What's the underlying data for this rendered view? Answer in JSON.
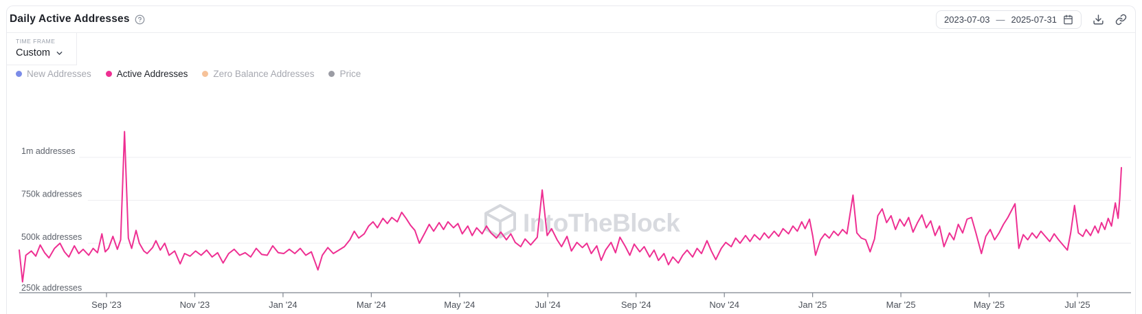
{
  "header": {
    "title": "Daily Active Addresses",
    "date_range": {
      "start": "2023-07-03",
      "separator": "—",
      "end": "2025-07-31"
    }
  },
  "timeframe": {
    "label": "TIME FRAME",
    "value": "Custom"
  },
  "legend": {
    "items": [
      {
        "label": "New Addresses",
        "color": "#7b8ce8",
        "active": false
      },
      {
        "label": "Active Addresses",
        "color": "#ee2f92",
        "active": true
      },
      {
        "label": "Zero Balance Addresses",
        "color": "#f6c299",
        "active": false
      },
      {
        "label": "Price",
        "color": "#9b9ca4",
        "active": false
      }
    ]
  },
  "watermark": {
    "text": "IntoTheBlock"
  },
  "chart_data": {
    "type": "line",
    "title": "Daily Active Addresses",
    "values_unit": "thousands of addresses",
    "x_range": [
      "2023-07-03",
      "2025-07-31"
    ],
    "x_ticks": [
      "Sep '23",
      "Nov '23",
      "Jan '24",
      "Mar '24",
      "May '24",
      "Jul '24",
      "Sep '24",
      "Nov '24",
      "Jan '25",
      "Mar '25",
      "May '25",
      "Jul '25"
    ],
    "y_ticks": [
      {
        "value": 250,
        "label": "250k addresses"
      },
      {
        "value": 500,
        "label": "500k addresses"
      },
      {
        "value": 750,
        "label": "750k addresses"
      },
      {
        "value": 1000,
        "label": "1m addresses"
      }
    ],
    "ylim": [
      210,
      1330
    ],
    "grid": "horizontal",
    "legend_position": "top-left",
    "series": [
      {
        "name": "Active Addresses",
        "color": "#ee2f92",
        "points": [
          [
            0.0,
            460
          ],
          [
            0.003,
            275
          ],
          [
            0.006,
            430
          ],
          [
            0.011,
            455
          ],
          [
            0.015,
            425
          ],
          [
            0.019,
            490
          ],
          [
            0.023,
            445
          ],
          [
            0.027,
            415
          ],
          [
            0.032,
            470
          ],
          [
            0.037,
            500
          ],
          [
            0.041,
            450
          ],
          [
            0.045,
            420
          ],
          [
            0.05,
            485
          ],
          [
            0.054,
            440
          ],
          [
            0.058,
            465
          ],
          [
            0.063,
            430
          ],
          [
            0.067,
            470
          ],
          [
            0.071,
            445
          ],
          [
            0.075,
            555
          ],
          [
            0.078,
            450
          ],
          [
            0.081,
            470
          ],
          [
            0.085,
            540
          ],
          [
            0.089,
            465
          ],
          [
            0.092,
            520
          ],
          [
            0.0955,
            1150
          ],
          [
            0.099,
            530
          ],
          [
            0.102,
            470
          ],
          [
            0.106,
            575
          ],
          [
            0.109,
            500
          ],
          [
            0.113,
            455
          ],
          [
            0.116,
            440
          ],
          [
            0.121,
            475
          ],
          [
            0.124,
            515
          ],
          [
            0.128,
            460
          ],
          [
            0.132,
            500
          ],
          [
            0.136,
            430
          ],
          [
            0.141,
            455
          ],
          [
            0.146,
            380
          ],
          [
            0.15,
            440
          ],
          [
            0.155,
            425
          ],
          [
            0.16,
            455
          ],
          [
            0.165,
            430
          ],
          [
            0.17,
            460
          ],
          [
            0.175,
            420
          ],
          [
            0.18,
            445
          ],
          [
            0.185,
            385
          ],
          [
            0.19,
            440
          ],
          [
            0.195,
            465
          ],
          [
            0.2,
            430
          ],
          [
            0.205,
            445
          ],
          [
            0.21,
            420
          ],
          [
            0.215,
            470
          ],
          [
            0.22,
            435
          ],
          [
            0.225,
            430
          ],
          [
            0.23,
            485
          ],
          [
            0.235,
            445
          ],
          [
            0.24,
            440
          ],
          [
            0.245,
            465
          ],
          [
            0.25,
            440
          ],
          [
            0.255,
            470
          ],
          [
            0.26,
            430
          ],
          [
            0.265,
            450
          ],
          [
            0.271,
            345
          ],
          [
            0.275,
            430
          ],
          [
            0.28,
            475
          ],
          [
            0.285,
            440
          ],
          [
            0.29,
            460
          ],
          [
            0.295,
            480
          ],
          [
            0.3,
            520
          ],
          [
            0.304,
            570
          ],
          [
            0.308,
            530
          ],
          [
            0.313,
            555
          ],
          [
            0.317,
            600
          ],
          [
            0.321,
            625
          ],
          [
            0.325,
            590
          ],
          [
            0.33,
            645
          ],
          [
            0.334,
            615
          ],
          [
            0.338,
            650
          ],
          [
            0.343,
            625
          ],
          [
            0.347,
            680
          ],
          [
            0.351,
            645
          ],
          [
            0.355,
            605
          ],
          [
            0.359,
            575
          ],
          [
            0.363,
            500
          ],
          [
            0.368,
            560
          ],
          [
            0.372,
            610
          ],
          [
            0.376,
            570
          ],
          [
            0.381,
            620
          ],
          [
            0.385,
            580
          ],
          [
            0.389,
            625
          ],
          [
            0.394,
            590
          ],
          [
            0.398,
            615
          ],
          [
            0.402,
            555
          ],
          [
            0.407,
            600
          ],
          [
            0.411,
            545
          ],
          [
            0.415,
            590
          ],
          [
            0.42,
            555
          ],
          [
            0.424,
            600
          ],
          [
            0.428,
            560
          ],
          [
            0.433,
            530
          ],
          [
            0.437,
            565
          ],
          [
            0.442,
            520
          ],
          [
            0.446,
            555
          ],
          [
            0.45,
            505
          ],
          [
            0.455,
            480
          ],
          [
            0.459,
            525
          ],
          [
            0.464,
            490
          ],
          [
            0.47,
            535
          ],
          [
            0.4745,
            810
          ],
          [
            0.479,
            545
          ],
          [
            0.483,
            585
          ],
          [
            0.488,
            520
          ],
          [
            0.492,
            480
          ],
          [
            0.497,
            540
          ],
          [
            0.501,
            455
          ],
          [
            0.506,
            505
          ],
          [
            0.511,
            475
          ],
          [
            0.515,
            500
          ],
          [
            0.519,
            440
          ],
          [
            0.524,
            485
          ],
          [
            0.528,
            400
          ],
          [
            0.532,
            460
          ],
          [
            0.537,
            505
          ],
          [
            0.541,
            445
          ],
          [
            0.545,
            535
          ],
          [
            0.55,
            480
          ],
          [
            0.554,
            430
          ],
          [
            0.558,
            495
          ],
          [
            0.563,
            450
          ],
          [
            0.567,
            480
          ],
          [
            0.572,
            420
          ],
          [
            0.576,
            460
          ],
          [
            0.58,
            400
          ],
          [
            0.585,
            440
          ],
          [
            0.589,
            375
          ],
          [
            0.593,
            420
          ],
          [
            0.598,
            385
          ],
          [
            0.602,
            430
          ],
          [
            0.606,
            460
          ],
          [
            0.611,
            420
          ],
          [
            0.615,
            470
          ],
          [
            0.619,
            440
          ],
          [
            0.624,
            515
          ],
          [
            0.628,
            455
          ],
          [
            0.632,
            405
          ],
          [
            0.637,
            470
          ],
          [
            0.641,
            505
          ],
          [
            0.646,
            480
          ],
          [
            0.65,
            530
          ],
          [
            0.654,
            500
          ],
          [
            0.659,
            545
          ],
          [
            0.663,
            510
          ],
          [
            0.667,
            550
          ],
          [
            0.672,
            520
          ],
          [
            0.676,
            560
          ],
          [
            0.68,
            530
          ],
          [
            0.685,
            570
          ],
          [
            0.689,
            540
          ],
          [
            0.693,
            585
          ],
          [
            0.698,
            555
          ],
          [
            0.702,
            600
          ],
          [
            0.706,
            570
          ],
          [
            0.71,
            625
          ],
          [
            0.713,
            585
          ],
          [
            0.717,
            640
          ],
          [
            0.72,
            540
          ],
          [
            0.7225,
            430
          ],
          [
            0.727,
            520
          ],
          [
            0.731,
            555
          ],
          [
            0.735,
            530
          ],
          [
            0.739,
            570
          ],
          [
            0.743,
            545
          ],
          [
            0.747,
            580
          ],
          [
            0.751,
            555
          ],
          [
            0.7565,
            780
          ],
          [
            0.76,
            560
          ],
          [
            0.764,
            530
          ],
          [
            0.768,
            520
          ],
          [
            0.772,
            450
          ],
          [
            0.776,
            525
          ],
          [
            0.779,
            660
          ],
          [
            0.783,
            700
          ],
          [
            0.787,
            620
          ],
          [
            0.791,
            660
          ],
          [
            0.795,
            580
          ],
          [
            0.799,
            640
          ],
          [
            0.803,
            600
          ],
          [
            0.807,
            650
          ],
          [
            0.811,
            565
          ],
          [
            0.815,
            620
          ],
          [
            0.819,
            665
          ],
          [
            0.823,
            590
          ],
          [
            0.827,
            630
          ],
          [
            0.831,
            545
          ],
          [
            0.835,
            600
          ],
          [
            0.839,
            480
          ],
          [
            0.844,
            560
          ],
          [
            0.848,
            520
          ],
          [
            0.852,
            610
          ],
          [
            0.856,
            560
          ],
          [
            0.86,
            640
          ],
          [
            0.864,
            650
          ],
          [
            0.868,
            560
          ],
          [
            0.873,
            440
          ],
          [
            0.877,
            540
          ],
          [
            0.881,
            580
          ],
          [
            0.885,
            520
          ],
          [
            0.889,
            560
          ],
          [
            0.893,
            610
          ],
          [
            0.897,
            650
          ],
          [
            0.9035,
            730
          ],
          [
            0.907,
            470
          ],
          [
            0.911,
            550
          ],
          [
            0.915,
            520
          ],
          [
            0.919,
            560
          ],
          [
            0.923,
            530
          ],
          [
            0.927,
            570
          ],
          [
            0.931,
            540
          ],
          [
            0.935,
            510
          ],
          [
            0.939,
            555
          ],
          [
            0.943,
            520
          ],
          [
            0.947,
            490
          ],
          [
            0.951,
            460
          ],
          [
            0.954,
            560
          ],
          [
            0.9575,
            720
          ],
          [
            0.961,
            560
          ],
          [
            0.965,
            540
          ],
          [
            0.968,
            580
          ],
          [
            0.972,
            545
          ],
          [
            0.976,
            600
          ],
          [
            0.979,
            560
          ],
          [
            0.982,
            620
          ],
          [
            0.985,
            580
          ],
          [
            0.988,
            645
          ],
          [
            0.991,
            600
          ],
          [
            0.9945,
            735
          ],
          [
            0.997,
            645
          ],
          [
            0.9985,
            760
          ],
          [
            1.0,
            940
          ]
        ]
      }
    ]
  }
}
